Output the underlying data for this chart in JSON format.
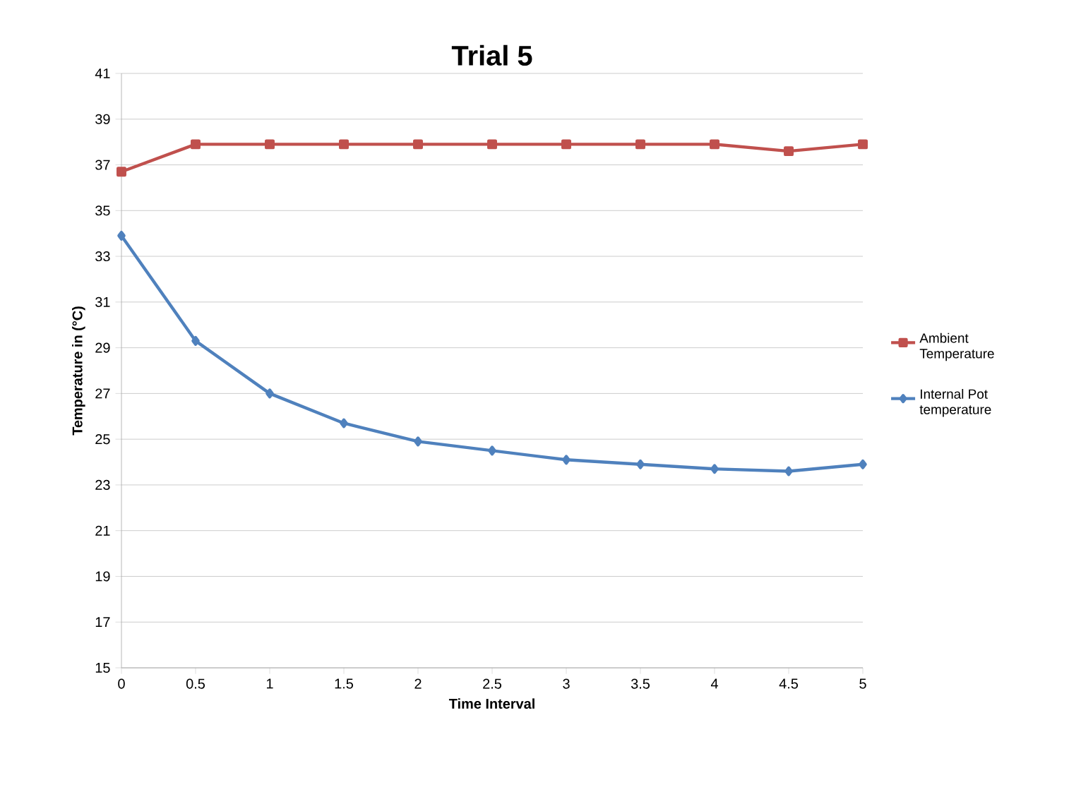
{
  "chart_data": {
    "type": "line",
    "title": "Trial 5",
    "xlabel": "Time Interval",
    "ylabel": "Temperature in (°C)",
    "categories": [
      "0",
      "0.5",
      "1",
      "1.5",
      "2",
      "2.5",
      "3",
      "3.5",
      "4",
      "4.5",
      "5"
    ],
    "series": [
      {
        "name": "Ambient Temperature",
        "color": "#c0504d",
        "marker": "square",
        "values": [
          36.7,
          37.9,
          37.9,
          37.9,
          37.9,
          37.9,
          37.9,
          37.9,
          37.9,
          37.6,
          37.9
        ]
      },
      {
        "name": "Internal Pot temperature",
        "color": "#4f81bd",
        "marker": "diamond",
        "values": [
          33.9,
          29.3,
          27.0,
          25.7,
          24.9,
          24.5,
          24.1,
          23.9,
          23.7,
          23.6,
          23.9
        ]
      }
    ],
    "ylim": [
      15,
      41
    ],
    "yticks": [
      15,
      17,
      19,
      21,
      23,
      25,
      27,
      29,
      31,
      33,
      35,
      37,
      39,
      41
    ],
    "grid": "y",
    "legend": "right",
    "line_style": "solid"
  }
}
